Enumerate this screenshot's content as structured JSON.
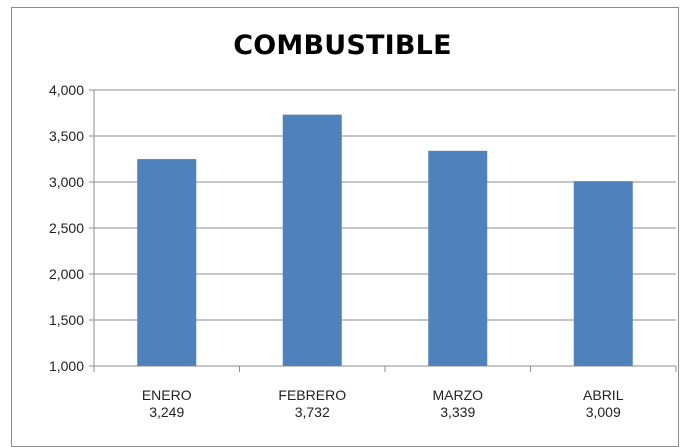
{
  "chart_data": {
    "type": "bar",
    "title": "COMBUSTIBLE",
    "categories": [
      "ENERO",
      "FEBRERO",
      "MARZO",
      "ABRIL"
    ],
    "value_labels": [
      "3,249",
      "3,732",
      "3,339",
      "3,009"
    ],
    "values": [
      3249,
      3732,
      3339,
      3009
    ],
    "ylim": [
      1000,
      4000
    ],
    "yticks": [
      1000,
      1500,
      2000,
      2500,
      3000,
      3500,
      4000
    ],
    "ytick_labels": [
      "1,000",
      "1,500",
      "2,000",
      "2,500",
      "3,000",
      "3,500",
      "4,000"
    ],
    "grid": true,
    "legend": "none",
    "bar_color": "#4f81bd",
    "grid_color": "#8c8c8c"
  }
}
